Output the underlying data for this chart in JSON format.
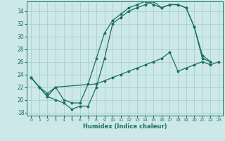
{
  "bg_color": "#cce8e8",
  "grid_color": "#aacece",
  "line_color": "#1a7060",
  "xlabel": "Humidex (Indice chaleur)",
  "xlim": [
    -0.5,
    23.5
  ],
  "ylim": [
    17.5,
    35.5
  ],
  "xticks": [
    0,
    1,
    2,
    3,
    4,
    5,
    6,
    7,
    8,
    9,
    10,
    11,
    12,
    13,
    14,
    15,
    16,
    17,
    18,
    19,
    20,
    21,
    22,
    23
  ],
  "yticks": [
    18,
    20,
    22,
    24,
    26,
    28,
    30,
    32,
    34
  ],
  "line1_x": [
    0,
    1,
    2,
    3,
    4,
    5,
    6,
    7,
    8,
    9,
    10,
    11,
    12,
    13,
    14,
    15,
    16,
    17,
    18,
    19,
    20,
    21,
    22
  ],
  "line1_y": [
    23.5,
    22.0,
    20.5,
    20.0,
    19.5,
    18.5,
    19.0,
    19.0,
    22.0,
    26.5,
    32.0,
    33.0,
    34.0,
    34.5,
    35.0,
    35.5,
    34.5,
    35.0,
    35.0,
    34.5,
    31.5,
    27.0,
    26.0
  ],
  "line2_x": [
    0,
    1,
    2,
    3,
    8,
    9,
    10,
    11,
    12,
    13,
    14,
    15,
    16,
    17,
    18,
    19,
    20,
    21,
    22,
    23
  ],
  "line2_y": [
    23.5,
    22.0,
    21.0,
    22.0,
    22.5,
    23.0,
    23.5,
    24.0,
    24.5,
    25.0,
    25.5,
    26.0,
    26.5,
    27.5,
    24.5,
    25.0,
    25.5,
    26.0,
    25.5,
    26.0
  ],
  "line3_x": [
    0,
    1,
    2,
    3,
    4,
    5,
    6,
    7,
    8,
    9,
    10,
    11,
    12,
    13,
    14,
    15,
    16,
    17,
    18,
    19,
    20,
    21,
    22
  ],
  "line3_y": [
    23.5,
    22.0,
    20.5,
    22.0,
    20.0,
    19.5,
    19.5,
    22.5,
    26.5,
    30.5,
    32.5,
    33.5,
    34.5,
    35.0,
    35.5,
    35.0,
    34.5,
    35.0,
    35.0,
    34.5,
    31.5,
    26.5,
    26.0
  ]
}
